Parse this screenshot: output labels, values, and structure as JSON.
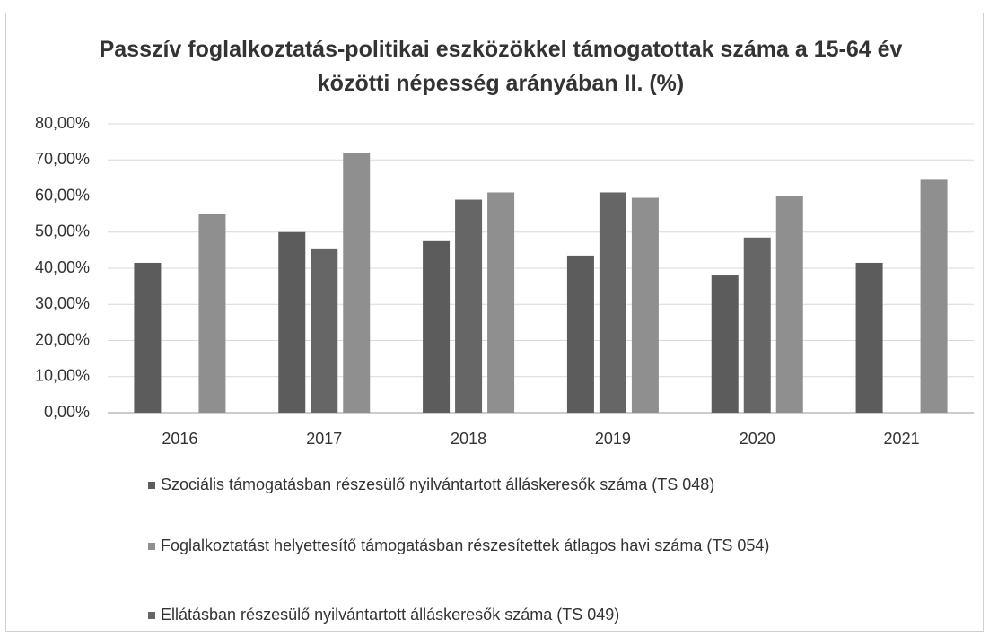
{
  "chart_data": {
    "type": "bar",
    "title": "Passzív foglalkoztatás-politikai eszközökkel támogatottak száma a 15-64 év közötti népesség  arányában II. (%)",
    "categories": [
      "2016",
      "2017",
      "2018",
      "2019",
      "2020",
      "2021"
    ],
    "series": [
      {
        "name": "Szociális támogatásban részesülő nyilvántartott álláskeresők száma (TS 048)",
        "color": "#5c5c5c",
        "values": [
          41.5,
          50,
          47.5,
          43.5,
          38,
          41.5
        ]
      },
      {
        "name": "Ellátásban részesülő nyilvántartott álláskeresők száma (TS 049)",
        "color": "#666666",
        "values": [
          null,
          45.5,
          59,
          61,
          48.5,
          null
        ]
      },
      {
        "name": "Foglalkoztatást helyettesítő támogatásban részesítettek átlagos havi száma (TS 054)",
        "color": "#8f8f8f",
        "values": [
          55,
          72,
          61,
          59.5,
          60,
          64.5
        ]
      }
    ],
    "ylim": [
      0,
      80
    ],
    "yticks": [
      {
        "value": 0,
        "label": "0,00%"
      },
      {
        "value": 10,
        "label": "10,00%"
      },
      {
        "value": 20,
        "label": "20,00%"
      },
      {
        "value": 30,
        "label": "30,00%"
      },
      {
        "value": 40,
        "label": "40,00%"
      },
      {
        "value": 50,
        "label": "50,00%"
      },
      {
        "value": 60,
        "label": "60,00%"
      },
      {
        "value": 70,
        "label": "70,00%"
      },
      {
        "value": 80,
        "label": "80,00%"
      }
    ],
    "grid": true
  }
}
